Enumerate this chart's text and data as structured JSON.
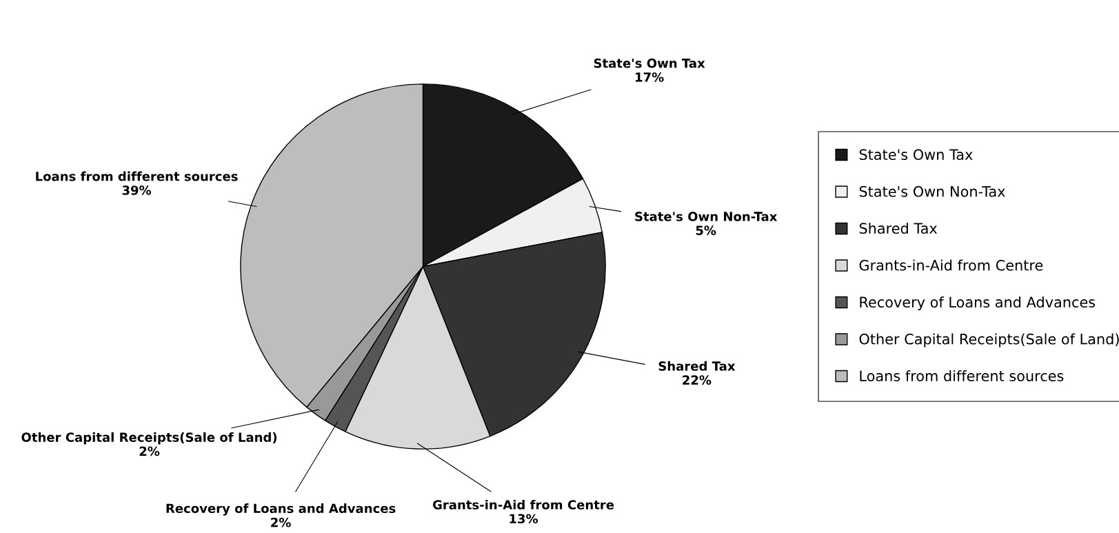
{
  "chart_data": {
    "type": "pie",
    "categories": [
      "State's Own Tax",
      "State's Own Non-Tax",
      "Shared Tax",
      "Grants-in-Aid from Centre",
      "Recovery of Loans and Advances",
      "Other Capital Receipts(Sale of Land)",
      "Loans from different sources"
    ],
    "values": [
      17,
      5,
      22,
      13,
      2,
      2,
      39
    ],
    "colors": [
      "#1a1a1a",
      "#f0f0f0",
      "#333333",
      "#d9d9d9",
      "#555555",
      "#999999",
      "#bdbdbd"
    ],
    "value_labels": [
      "17%",
      "5%",
      "22%",
      "13%",
      "2%",
      "2%",
      "39%"
    ],
    "legend": "right"
  }
}
